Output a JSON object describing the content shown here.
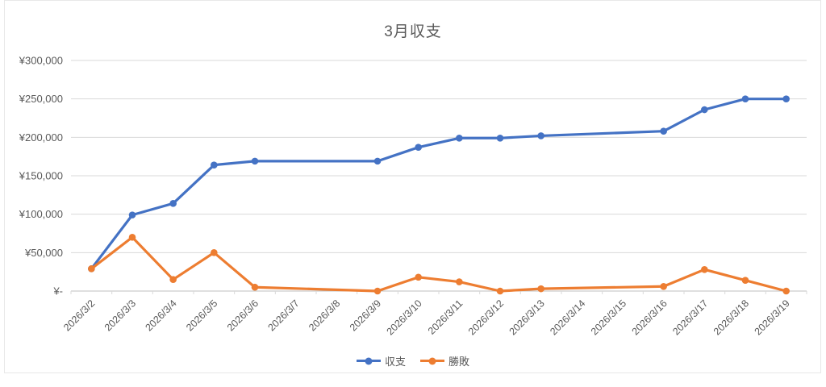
{
  "title": {
    "text": "3月収支"
  },
  "colors": {
    "series_balance": "#4472c4",
    "series_winloss": "#ed7d31",
    "title_text": "#595959",
    "axis_text": "#595959",
    "gridline": "#d9d9d9",
    "axis_line": "#bfbfbf",
    "chart_border": "#e8e8e8",
    "background": "#ffffff"
  },
  "chart_data": {
    "type": "line",
    "title": "3月収支",
    "categories": [
      "2026/3/2",
      "2026/3/3",
      "2026/3/4",
      "2026/3/5",
      "2026/3/6",
      "2026/3/7",
      "2026/3/8",
      "2026/3/9",
      "2026/3/10",
      "2026/3/11",
      "2026/3/12",
      "2026/3/13",
      "2026/3/14",
      "2026/3/15",
      "2026/3/16",
      "2026/3/17",
      "2026/3/18",
      "2026/3/19"
    ],
    "series": [
      {
        "name": "収支",
        "color": "#4472c4",
        "marker": "circle",
        "values": [
          29000,
          99000,
          114000,
          164000,
          169000,
          null,
          null,
          169000,
          187000,
          199000,
          199000,
          202000,
          null,
          null,
          208000,
          236000,
          250000,
          250000
        ]
      },
      {
        "name": "勝敗",
        "color": "#ed7d31",
        "marker": "circle",
        "values": [
          29000,
          70000,
          15000,
          50000,
          5000,
          null,
          null,
          0,
          18000,
          12000,
          0,
          3000,
          null,
          null,
          6000,
          28000,
          14000,
          0
        ]
      }
    ],
    "y_axis": {
      "min": 0,
      "max": 300000,
      "step": 50000,
      "tick_labels": [
        "¥-",
        "¥50,000",
        "¥100,000",
        "¥150,000",
        "¥200,000",
        "¥250,000",
        "¥300,000"
      ]
    },
    "x_axis": {
      "label_rotation_deg": -45
    },
    "grid": true,
    "legend_position": "bottom",
    "gaps_note": "no data points on 2026/3/7, 2026/3/8, 2026/3/14, 2026/3/15; lines connect across gaps"
  }
}
